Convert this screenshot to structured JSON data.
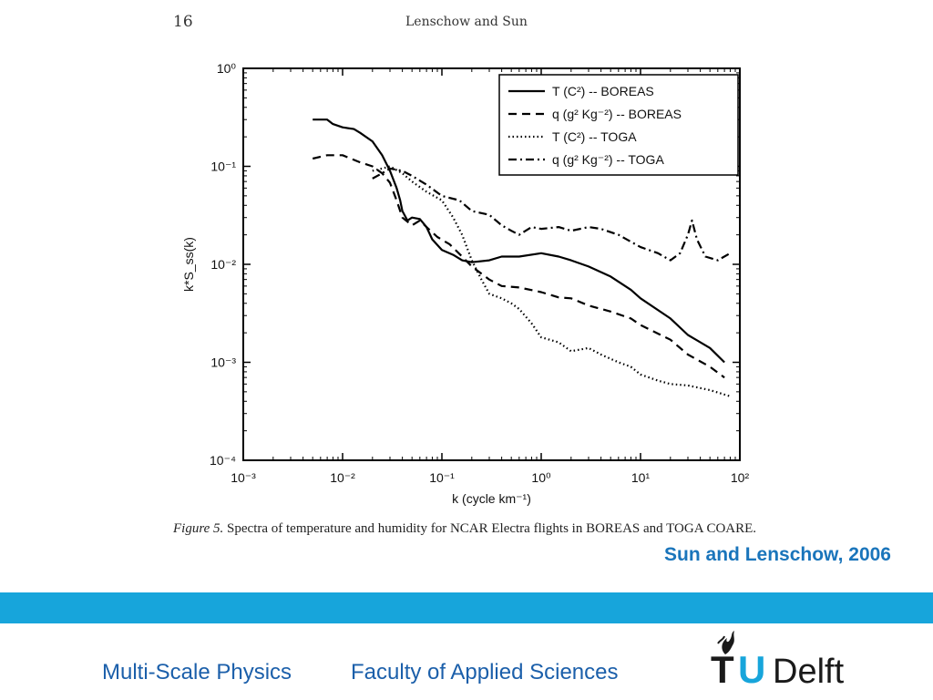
{
  "page_header": {
    "page_number": "16",
    "authors": "Lenschow and Sun"
  },
  "caption": {
    "label": "Figure 5.",
    "text": " Spectra of temperature and humidity for NCAR Electra flights in BOREAS and TOGA COARE."
  },
  "citation": "Sun and Lenschow, 2006",
  "footer": {
    "left": "Multi-Scale Physics",
    "right": "Faculty of Applied Sciences",
    "logo": {
      "t": "T",
      "u": "U",
      "delft": "Delft"
    }
  },
  "chart_data": {
    "type": "line",
    "xscale": "log",
    "yscale": "log",
    "xlim": [
      0.001,
      100
    ],
    "ylim": [
      0.0001,
      1
    ],
    "xlabel": "k (cycle km⁻¹)",
    "ylabel": "k*S_ss(k)",
    "xticks": [
      "10⁻³",
      "10⁻²",
      "10⁻¹",
      "10⁰",
      "10¹",
      "10²"
    ],
    "yticks": [
      "10⁻⁴",
      "10⁻³",
      "10⁻²",
      "10⁻¹",
      "10⁰"
    ],
    "legend_position": "top-right",
    "series": [
      {
        "name": "T (C²) -- BOREAS",
        "style": "solid",
        "points": [
          [
            0.005,
            0.3
          ],
          [
            0.007,
            0.3
          ],
          [
            0.008,
            0.27
          ],
          [
            0.01,
            0.25
          ],
          [
            0.013,
            0.24
          ],
          [
            0.015,
            0.22
          ],
          [
            0.02,
            0.18
          ],
          [
            0.025,
            0.13
          ],
          [
            0.03,
            0.09
          ],
          [
            0.035,
            0.06
          ],
          [
            0.038,
            0.045
          ],
          [
            0.04,
            0.035
          ],
          [
            0.045,
            0.028
          ],
          [
            0.05,
            0.03
          ],
          [
            0.06,
            0.029
          ],
          [
            0.07,
            0.024
          ],
          [
            0.08,
            0.018
          ],
          [
            0.1,
            0.014
          ],
          [
            0.13,
            0.0125
          ],
          [
            0.16,
            0.011
          ],
          [
            0.2,
            0.0105
          ],
          [
            0.3,
            0.011
          ],
          [
            0.4,
            0.012
          ],
          [
            0.6,
            0.012
          ],
          [
            1.0,
            0.013
          ],
          [
            1.5,
            0.012
          ],
          [
            2,
            0.011
          ],
          [
            3,
            0.0095
          ],
          [
            5,
            0.0075
          ],
          [
            8,
            0.0055
          ],
          [
            10,
            0.0045
          ],
          [
            20,
            0.0028
          ],
          [
            30,
            0.0019
          ],
          [
            50,
            0.0014
          ],
          [
            70,
            0.001
          ]
        ]
      },
      {
        "name": "q (g² Kg⁻²) -- BOREAS",
        "style": "dashed",
        "points": [
          [
            0.005,
            0.12
          ],
          [
            0.007,
            0.13
          ],
          [
            0.01,
            0.13
          ],
          [
            0.015,
            0.11
          ],
          [
            0.02,
            0.1
          ],
          [
            0.025,
            0.085
          ],
          [
            0.03,
            0.068
          ],
          [
            0.035,
            0.045
          ],
          [
            0.04,
            0.03
          ],
          [
            0.05,
            0.025
          ],
          [
            0.06,
            0.028
          ],
          [
            0.07,
            0.024
          ],
          [
            0.09,
            0.019
          ],
          [
            0.12,
            0.016
          ],
          [
            0.16,
            0.012
          ],
          [
            0.2,
            0.0095
          ],
          [
            0.3,
            0.007
          ],
          [
            0.4,
            0.006
          ],
          [
            0.6,
            0.0058
          ],
          [
            1.0,
            0.0052
          ],
          [
            1.5,
            0.0046
          ],
          [
            2,
            0.0045
          ],
          [
            3,
            0.0038
          ],
          [
            5,
            0.0033
          ],
          [
            8,
            0.0028
          ],
          [
            10,
            0.0024
          ],
          [
            20,
            0.0017
          ],
          [
            30,
            0.0012
          ],
          [
            50,
            0.0009
          ],
          [
            70,
            0.0007
          ]
        ]
      },
      {
        "name": "T (C²) -- TOGA",
        "style": "dotted",
        "points": [
          [
            0.02,
            0.09
          ],
          [
            0.025,
            0.095
          ],
          [
            0.03,
            0.1
          ],
          [
            0.04,
            0.085
          ],
          [
            0.05,
            0.07
          ],
          [
            0.07,
            0.055
          ],
          [
            0.1,
            0.045
          ],
          [
            0.13,
            0.03
          ],
          [
            0.16,
            0.02
          ],
          [
            0.2,
            0.011
          ],
          [
            0.25,
            0.007
          ],
          [
            0.3,
            0.005
          ],
          [
            0.4,
            0.0045
          ],
          [
            0.5,
            0.004
          ],
          [
            0.6,
            0.0035
          ],
          [
            0.8,
            0.0025
          ],
          [
            1.0,
            0.0018
          ],
          [
            1.5,
            0.0016
          ],
          [
            2,
            0.0013
          ],
          [
            3,
            0.0014
          ],
          [
            4,
            0.0012
          ],
          [
            6,
            0.001
          ],
          [
            8,
            0.0009
          ],
          [
            10,
            0.00075
          ],
          [
            15,
            0.00065
          ],
          [
            20,
            0.0006
          ],
          [
            30,
            0.00058
          ],
          [
            50,
            0.00052
          ],
          [
            80,
            0.00045
          ]
        ]
      },
      {
        "name": "q (g² Kg⁻²) -- TOGA",
        "style": "dashdot",
        "points": [
          [
            0.02,
            0.075
          ],
          [
            0.025,
            0.085
          ],
          [
            0.03,
            0.095
          ],
          [
            0.04,
            0.09
          ],
          [
            0.05,
            0.08
          ],
          [
            0.07,
            0.065
          ],
          [
            0.1,
            0.05
          ],
          [
            0.15,
            0.045
          ],
          [
            0.2,
            0.035
          ],
          [
            0.3,
            0.032
          ],
          [
            0.4,
            0.025
          ],
          [
            0.5,
            0.022
          ],
          [
            0.6,
            0.02
          ],
          [
            0.8,
            0.024
          ],
          [
            1.0,
            0.023
          ],
          [
            1.5,
            0.024
          ],
          [
            2,
            0.022
          ],
          [
            3,
            0.024
          ],
          [
            4,
            0.023
          ],
          [
            6,
            0.02
          ],
          [
            8,
            0.017
          ],
          [
            10,
            0.015
          ],
          [
            15,
            0.013
          ],
          [
            20,
            0.011
          ],
          [
            25,
            0.013
          ],
          [
            30,
            0.02
          ],
          [
            33,
            0.028
          ],
          [
            37,
            0.018
          ],
          [
            45,
            0.012
          ],
          [
            60,
            0.011
          ],
          [
            80,
            0.013
          ]
        ]
      }
    ]
  }
}
